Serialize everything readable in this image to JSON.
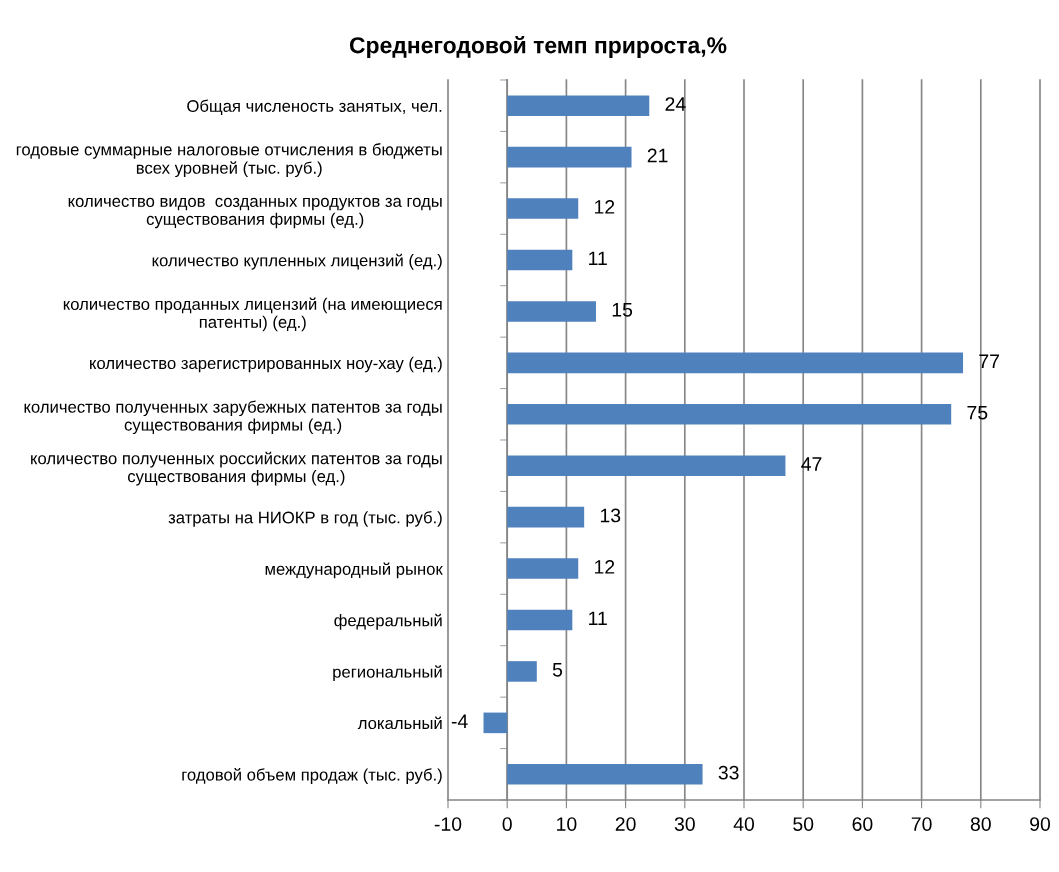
{
  "chart_data": {
    "type": "bar",
    "orientation": "horizontal",
    "title": "Среднегодовой темп прироста,%",
    "categories": [
      "Общая численость занятых, чел.",
      "годовые суммарные налоговые отчисления в бюджеты\nвсех уровней (тыс. руб.)",
      "количество видов  созданных продуктов за годы\nсуществования фирмы (ед.)",
      "количество купленных лицензий (ед.)",
      "количество проданных лицензий (на имеющиеся\nпатенты) (ед.)",
      "количество зарегистрированных ноу-хау (ед.)",
      "количество полученных зарубежных патентов за годы\nсуществования фирмы (ед.)",
      "количество полученных российских патентов за годы\nсуществования фирмы (ед.)",
      "затраты на НИОКР в год (тыс. руб.)",
      "международный рынок",
      "федеральный",
      "региональный",
      "локальный",
      "годовой объем продаж (тыс. руб.)"
    ],
    "values": [
      24,
      21,
      12,
      11,
      15,
      77,
      75,
      47,
      13,
      12,
      11,
      5,
      -4,
      33
    ],
    "color": "#4f81bd",
    "xlim": [
      -10,
      90
    ],
    "xticks": [
      -10,
      0,
      10,
      20,
      30,
      40,
      50,
      60,
      70,
      80,
      90
    ],
    "grid": "x",
    "data_labels": true
  }
}
